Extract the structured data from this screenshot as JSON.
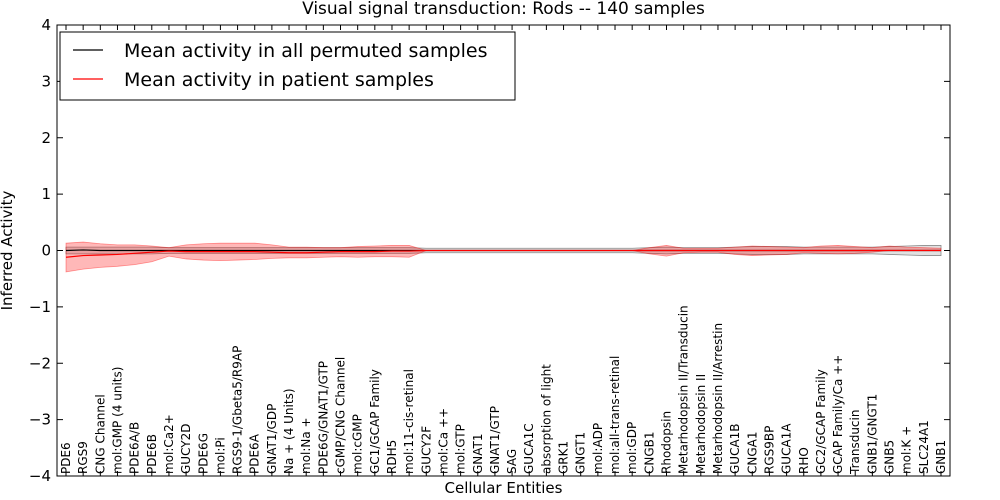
{
  "chart_data": {
    "type": "line",
    "title": "Visual signal transduction: Rods -- 140 samples",
    "xlabel": "Cellular Entities",
    "ylabel": "Inferred Activity",
    "ylim": [
      -4,
      4
    ],
    "yticks": [
      "-4",
      "-3",
      "-2",
      "-1",
      "0",
      "1",
      "2",
      "3",
      "4"
    ],
    "legend": {
      "placement": "top-left",
      "entries": [
        {
          "label": "Mean activity in all permuted samples",
          "color": "#000000"
        },
        {
          "label": "Mean activity in patient samples",
          "color": "#ff0000"
        }
      ]
    },
    "categories": [
      "PDE6",
      "RGS9",
      "CNG Channel",
      "mol:GMP (4 units)",
      "PDE6A/B",
      "PDE6B",
      "mol:Ca2+",
      "GUCY2D",
      "PDE6G",
      "mol:Pi",
      "RGS9-1/Gbeta5/R9AP",
      "PDE6A",
      "GNAT1/GDP",
      "Na + (4 Units)",
      "mol:Na +",
      "PDE6G/GNAT1/GTP",
      "cGMP/CNG Channel",
      "mol:cGMP",
      "GC1/GCAP Family",
      "RDH5",
      "mol:11-cis-retinal",
      "GUCY2F",
      "mol:Ca ++",
      "mol:GTP",
      "GNAT1",
      "GNAT1/GTP",
      "SAG",
      "GUCA1C",
      "absorption of light",
      "GRK1",
      "GNGT1",
      "mol:ADP",
      "mol:all-trans-retinal",
      "mol:GDP",
      "CNGB1",
      "Rhodopsin",
      "Metarhodopsin II/Transducin",
      "Metarhodopsin II",
      "Metarhodopsin II/Arrestin",
      "GUCA1B",
      "CNGA1",
      "RGS9BP",
      "GUCA1A",
      "RHO",
      "GC2/GCAP Family",
      "GCAP Family/Ca ++",
      "Transducin",
      "GNB1/GNGT1",
      "GNB5",
      "mol:K +",
      "SLC24A1",
      "GNB1"
    ],
    "series": [
      {
        "name": "Mean activity in all permuted samples",
        "color": "#000000",
        "values": [
          0.0,
          0.01,
          0.0,
          0.0,
          0.0,
          0.0,
          0.0,
          0.0,
          0.0,
          0.0,
          0.0,
          0.0,
          0.0,
          0.0,
          0.0,
          0.0,
          0.0,
          0.0,
          0.0,
          0.0,
          0.0,
          0.0,
          0.0,
          0.0,
          0.0,
          0.0,
          0.0,
          0.0,
          0.0,
          0.0,
          0.0,
          0.0,
          0.0,
          0.0,
          0.0,
          0.0,
          0.0,
          0.0,
          0.0,
          0.0,
          0.0,
          0.0,
          0.0,
          0.0,
          0.0,
          0.0,
          0.0,
          0.0,
          0.0,
          0.0,
          0.0,
          0.0
        ],
        "band_upper": [
          0.06,
          0.06,
          0.06,
          0.06,
          0.06,
          0.06,
          0.05,
          0.05,
          0.05,
          0.05,
          0.05,
          0.05,
          0.05,
          0.05,
          0.05,
          0.05,
          0.05,
          0.05,
          0.05,
          0.05,
          0.05,
          0.04,
          0.04,
          0.04,
          0.04,
          0.04,
          0.04,
          0.04,
          0.04,
          0.04,
          0.04,
          0.04,
          0.04,
          0.04,
          0.05,
          0.06,
          0.05,
          0.05,
          0.05,
          0.06,
          0.07,
          0.07,
          0.07,
          0.06,
          0.06,
          0.06,
          0.06,
          0.06,
          0.07,
          0.08,
          0.09,
          0.09
        ],
        "band_lower": [
          -0.06,
          -0.06,
          -0.06,
          -0.06,
          -0.06,
          -0.06,
          -0.05,
          -0.05,
          -0.05,
          -0.05,
          -0.05,
          -0.05,
          -0.05,
          -0.05,
          -0.05,
          -0.05,
          -0.05,
          -0.05,
          -0.05,
          -0.05,
          -0.05,
          -0.04,
          -0.04,
          -0.04,
          -0.04,
          -0.04,
          -0.04,
          -0.04,
          -0.04,
          -0.04,
          -0.04,
          -0.04,
          -0.04,
          -0.04,
          -0.05,
          -0.06,
          -0.05,
          -0.05,
          -0.05,
          -0.06,
          -0.07,
          -0.07,
          -0.07,
          -0.06,
          -0.06,
          -0.06,
          -0.06,
          -0.06,
          -0.07,
          -0.08,
          -0.09,
          -0.09
        ]
      },
      {
        "name": "Mean activity in patient samples",
        "color": "#ff0000",
        "values": [
          -0.12,
          -0.09,
          -0.08,
          -0.07,
          -0.05,
          -0.03,
          -0.01,
          -0.02,
          -0.02,
          -0.02,
          -0.02,
          -0.02,
          -0.03,
          -0.04,
          -0.04,
          -0.03,
          -0.02,
          -0.02,
          -0.02,
          -0.01,
          -0.01,
          0.0,
          0.0,
          0.0,
          0.0,
          0.0,
          0.0,
          0.0,
          0.0,
          0.0,
          0.0,
          0.0,
          0.0,
          0.0,
          0.0,
          0.0,
          0.0,
          0.0,
          0.0,
          0.0,
          0.0,
          0.0,
          0.0,
          0.0,
          0.0,
          0.0,
          0.0,
          0.0,
          0.0,
          0.0,
          0.0,
          0.0
        ],
        "band_upper": [
          0.13,
          0.15,
          0.12,
          0.1,
          0.1,
          0.08,
          0.05,
          0.1,
          0.12,
          0.13,
          0.13,
          0.13,
          0.1,
          0.06,
          0.06,
          0.05,
          0.05,
          0.07,
          0.08,
          0.09,
          0.09,
          0.0,
          0.0,
          0.0,
          0.0,
          0.0,
          0.0,
          0.0,
          0.0,
          0.0,
          0.0,
          0.0,
          0.0,
          0.0,
          0.05,
          0.09,
          0.04,
          0.04,
          0.04,
          0.06,
          0.08,
          0.07,
          0.06,
          0.05,
          0.08,
          0.09,
          0.07,
          0.05,
          0.08,
          0.06,
          0.05,
          0.04
        ],
        "band_lower": [
          -0.38,
          -0.33,
          -0.3,
          -0.28,
          -0.25,
          -0.2,
          -0.1,
          -0.15,
          -0.17,
          -0.18,
          -0.17,
          -0.16,
          -0.14,
          -0.13,
          -0.13,
          -0.12,
          -0.11,
          -0.12,
          -0.11,
          -0.11,
          -0.12,
          0.0,
          0.0,
          0.0,
          0.0,
          0.0,
          0.0,
          0.0,
          0.0,
          0.0,
          0.0,
          0.0,
          0.0,
          0.0,
          -0.06,
          -0.1,
          -0.04,
          -0.03,
          -0.03,
          -0.07,
          -0.09,
          -0.08,
          -0.07,
          -0.04,
          -0.05,
          -0.06,
          -0.05,
          -0.03,
          0.0,
          0.0,
          0.0,
          0.0
        ]
      }
    ]
  }
}
